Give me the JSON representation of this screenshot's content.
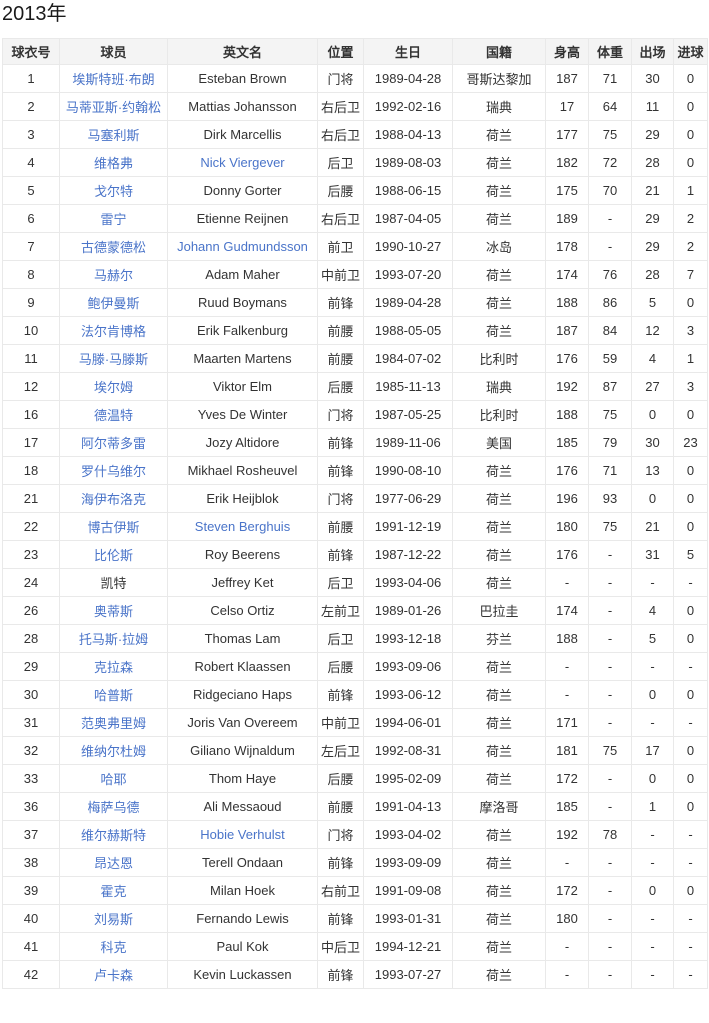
{
  "page": {
    "title": "2013年"
  },
  "colors": {
    "link": "#4a74c9",
    "header_bg": "#f4f4f4",
    "border": "#e9e9e9",
    "text": "#333333"
  },
  "table": {
    "columns": [
      {
        "key": "no",
        "label": "球衣号",
        "name": "jersey-number"
      },
      {
        "key": "player",
        "label": "球员",
        "name": "player-name",
        "link_key": "player_link"
      },
      {
        "key": "en",
        "label": "英文名",
        "name": "english-name",
        "link_key": "en_link"
      },
      {
        "key": "pos",
        "label": "位置",
        "name": "position"
      },
      {
        "key": "birth",
        "label": "生日",
        "name": "birthday"
      },
      {
        "key": "nat",
        "label": "国籍",
        "name": "nationality"
      },
      {
        "key": "h",
        "label": "身高",
        "name": "height"
      },
      {
        "key": "w",
        "label": "体重",
        "name": "weight"
      },
      {
        "key": "apps",
        "label": "出场",
        "name": "appearances"
      },
      {
        "key": "goals",
        "label": "进球",
        "name": "goals"
      }
    ],
    "rows": [
      {
        "no": "1",
        "player": "埃斯特班·布朗",
        "player_link": true,
        "en": "Esteban Brown",
        "en_link": false,
        "pos": "门将",
        "birth": "1989-04-28",
        "nat": "哥斯达黎加",
        "h": "187",
        "w": "71",
        "apps": "30",
        "goals": "0"
      },
      {
        "no": "2",
        "player": "马蒂亚斯·约翰松",
        "player_link": true,
        "en": "Mattias Johansson",
        "en_link": false,
        "pos": "右后卫",
        "birth": "1992-02-16",
        "nat": "瑞典",
        "h": "17",
        "w": "64",
        "apps": "11",
        "goals": "0"
      },
      {
        "no": "3",
        "player": "马塞利斯",
        "player_link": true,
        "en": "Dirk Marcellis",
        "en_link": false,
        "pos": "右后卫",
        "birth": "1988-04-13",
        "nat": "荷兰",
        "h": "177",
        "w": "75",
        "apps": "29",
        "goals": "0"
      },
      {
        "no": "4",
        "player": "维格弗",
        "player_link": true,
        "en": "Nick Viergever",
        "en_link": true,
        "pos": "后卫",
        "birth": "1989-08-03",
        "nat": "荷兰",
        "h": "182",
        "w": "72",
        "apps": "28",
        "goals": "0"
      },
      {
        "no": "5",
        "player": "戈尔特",
        "player_link": true,
        "en": "Donny Gorter",
        "en_link": false,
        "pos": "后腰",
        "birth": "1988-06-15",
        "nat": "荷兰",
        "h": "175",
        "w": "70",
        "apps": "21",
        "goals": "1"
      },
      {
        "no": "6",
        "player": "雷宁",
        "player_link": true,
        "en": "Etienne Reijnen",
        "en_link": false,
        "pos": "右后卫",
        "birth": "1987-04-05",
        "nat": "荷兰",
        "h": "189",
        "w": "-",
        "apps": "29",
        "goals": "2"
      },
      {
        "no": "7",
        "player": "古德蒙德松",
        "player_link": true,
        "en": "Johann Gudmundsson",
        "en_link": true,
        "pos": "前卫",
        "birth": "1990-10-27",
        "nat": "冰岛",
        "h": "178",
        "w": "-",
        "apps": "29",
        "goals": "2"
      },
      {
        "no": "8",
        "player": "马赫尔",
        "player_link": true,
        "en": "Adam Maher",
        "en_link": false,
        "pos": "中前卫",
        "birth": "1993-07-20",
        "nat": "荷兰",
        "h": "174",
        "w": "76",
        "apps": "28",
        "goals": "7"
      },
      {
        "no": "9",
        "player": "鲍伊曼斯",
        "player_link": true,
        "en": "Ruud Boymans",
        "en_link": false,
        "pos": "前锋",
        "birth": "1989-04-28",
        "nat": "荷兰",
        "h": "188",
        "w": "86",
        "apps": "5",
        "goals": "0"
      },
      {
        "no": "10",
        "player": "法尔肯博格",
        "player_link": true,
        "en": "Erik Falkenburg",
        "en_link": false,
        "pos": "前腰",
        "birth": "1988-05-05",
        "nat": "荷兰",
        "h": "187",
        "w": "84",
        "apps": "12",
        "goals": "3"
      },
      {
        "no": "11",
        "player": "马滕·马滕斯",
        "player_link": true,
        "en": "Maarten Martens",
        "en_link": false,
        "pos": "前腰",
        "birth": "1984-07-02",
        "nat": "比利时",
        "h": "176",
        "w": "59",
        "apps": "4",
        "goals": "1"
      },
      {
        "no": "12",
        "player": "埃尔姆",
        "player_link": true,
        "en": "Viktor Elm",
        "en_link": false,
        "pos": "后腰",
        "birth": "1985-11-13",
        "nat": "瑞典",
        "h": "192",
        "w": "87",
        "apps": "27",
        "goals": "3"
      },
      {
        "no": "16",
        "player": "德温特",
        "player_link": true,
        "en": "Yves De Winter",
        "en_link": false,
        "pos": "门将",
        "birth": "1987-05-25",
        "nat": "比利时",
        "h": "188",
        "w": "75",
        "apps": "0",
        "goals": "0"
      },
      {
        "no": "17",
        "player": "阿尔蒂多雷",
        "player_link": true,
        "en": "Jozy Altidore",
        "en_link": false,
        "pos": "前锋",
        "birth": "1989-11-06",
        "nat": "美国",
        "h": "185",
        "w": "79",
        "apps": "30",
        "goals": "23"
      },
      {
        "no": "18",
        "player": "罗什乌维尔",
        "player_link": true,
        "en": "Mikhael Rosheuvel",
        "en_link": false,
        "pos": "前锋",
        "birth": "1990-08-10",
        "nat": "荷兰",
        "h": "176",
        "w": "71",
        "apps": "13",
        "goals": "0"
      },
      {
        "no": "21",
        "player": "海伊布洛克",
        "player_link": true,
        "en": "Erik Heijblok",
        "en_link": false,
        "pos": "门将",
        "birth": "1977-06-29",
        "nat": "荷兰",
        "h": "196",
        "w": "93",
        "apps": "0",
        "goals": "0"
      },
      {
        "no": "22",
        "player": "博古伊斯",
        "player_link": true,
        "en": "Steven Berghuis",
        "en_link": true,
        "pos": "前腰",
        "birth": "1991-12-19",
        "nat": "荷兰",
        "h": "180",
        "w": "75",
        "apps": "21",
        "goals": "0"
      },
      {
        "no": "23",
        "player": "比伦斯",
        "player_link": true,
        "en": "Roy Beerens",
        "en_link": false,
        "pos": "前锋",
        "birth": "1987-12-22",
        "nat": "荷兰",
        "h": "176",
        "w": "-",
        "apps": "31",
        "goals": "5"
      },
      {
        "no": "24",
        "player": "凯特",
        "player_link": false,
        "en": "Jeffrey Ket",
        "en_link": false,
        "pos": "后卫",
        "birth": "1993-04-06",
        "nat": "荷兰",
        "h": "-",
        "w": "-",
        "apps": "-",
        "goals": "-"
      },
      {
        "no": "26",
        "player": "奥蒂斯",
        "player_link": true,
        "en": "Celso Ortiz",
        "en_link": false,
        "pos": "左前卫",
        "birth": "1989-01-26",
        "nat": "巴拉圭",
        "h": "174",
        "w": "-",
        "apps": "4",
        "goals": "0"
      },
      {
        "no": "28",
        "player": "托马斯·拉姆",
        "player_link": true,
        "en": "Thomas Lam",
        "en_link": false,
        "pos": "后卫",
        "birth": "1993-12-18",
        "nat": "芬兰",
        "h": "188",
        "w": "-",
        "apps": "5",
        "goals": "0"
      },
      {
        "no": "29",
        "player": "克拉森",
        "player_link": true,
        "en": "Robert Klaassen",
        "en_link": false,
        "pos": "后腰",
        "birth": "1993-09-06",
        "nat": "荷兰",
        "h": "-",
        "w": "-",
        "apps": "-",
        "goals": "-"
      },
      {
        "no": "30",
        "player": "哈普斯",
        "player_link": true,
        "en": "Ridgeciano Haps",
        "en_link": false,
        "pos": "前锋",
        "birth": "1993-06-12",
        "nat": "荷兰",
        "h": "-",
        "w": "-",
        "apps": "0",
        "goals": "0"
      },
      {
        "no": "31",
        "player": "范奥弗里姆",
        "player_link": true,
        "en": "Joris Van Overeem",
        "en_link": false,
        "pos": "中前卫",
        "birth": "1994-06-01",
        "nat": "荷兰",
        "h": "171",
        "w": "-",
        "apps": "-",
        "goals": "-"
      },
      {
        "no": "32",
        "player": "维纳尔杜姆",
        "player_link": true,
        "en": "Giliano Wijnaldum",
        "en_link": false,
        "pos": "左后卫",
        "birth": "1992-08-31",
        "nat": "荷兰",
        "h": "181",
        "w": "75",
        "apps": "17",
        "goals": "0"
      },
      {
        "no": "33",
        "player": "哈耶",
        "player_link": true,
        "en": "Thom Haye",
        "en_link": false,
        "pos": "后腰",
        "birth": "1995-02-09",
        "nat": "荷兰",
        "h": "172",
        "w": "-",
        "apps": "0",
        "goals": "0"
      },
      {
        "no": "36",
        "player": "梅萨乌德",
        "player_link": true,
        "en": "Ali Messaoud",
        "en_link": false,
        "pos": "前腰",
        "birth": "1991-04-13",
        "nat": "摩洛哥",
        "h": "185",
        "w": "-",
        "apps": "1",
        "goals": "0"
      },
      {
        "no": "37",
        "player": "维尔赫斯特",
        "player_link": true,
        "en": "Hobie Verhulst",
        "en_link": true,
        "pos": "门将",
        "birth": "1993-04-02",
        "nat": "荷兰",
        "h": "192",
        "w": "78",
        "apps": "-",
        "goals": "-"
      },
      {
        "no": "38",
        "player": "昂达恩",
        "player_link": true,
        "en": "Terell Ondaan",
        "en_link": false,
        "pos": "前锋",
        "birth": "1993-09-09",
        "nat": "荷兰",
        "h": "-",
        "w": "-",
        "apps": "-",
        "goals": "-"
      },
      {
        "no": "39",
        "player": "霍克",
        "player_link": true,
        "en": "Milan Hoek",
        "en_link": false,
        "pos": "右前卫",
        "birth": "1991-09-08",
        "nat": "荷兰",
        "h": "172",
        "w": "-",
        "apps": "0",
        "goals": "0"
      },
      {
        "no": "40",
        "player": "刘易斯",
        "player_link": true,
        "en": "Fernando Lewis",
        "en_link": false,
        "pos": "前锋",
        "birth": "1993-01-31",
        "nat": "荷兰",
        "h": "180",
        "w": "-",
        "apps": "-",
        "goals": "-"
      },
      {
        "no": "41",
        "player": "科克",
        "player_link": true,
        "en": "Paul Kok",
        "en_link": false,
        "pos": "中后卫",
        "birth": "1994-12-21",
        "nat": "荷兰",
        "h": "-",
        "w": "-",
        "apps": "-",
        "goals": "-"
      },
      {
        "no": "42",
        "player": "卢卡森",
        "player_link": true,
        "en": "Kevin Luckassen",
        "en_link": false,
        "pos": "前锋",
        "birth": "1993-07-27",
        "nat": "荷兰",
        "h": "-",
        "w": "-",
        "apps": "-",
        "goals": "-"
      }
    ]
  }
}
